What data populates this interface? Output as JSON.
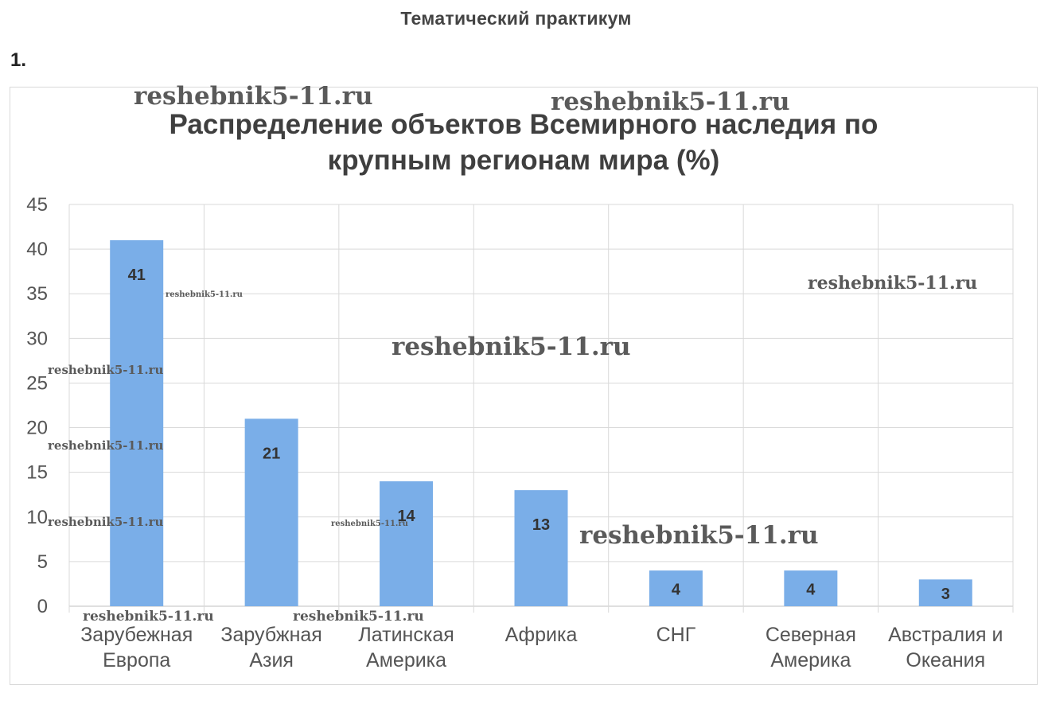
{
  "page": {
    "heading": "Тематический практикум",
    "task_number": "1."
  },
  "watermark_text": "reshebnik5-11.ru",
  "colors": {
    "bar": "#7aaee8",
    "grid": "#d9d9d9",
    "axis": "#bfbfbf"
  },
  "chart_data": {
    "type": "bar",
    "title": "Распределение объектов Всемирного наследия по крупным регионам мира (%)",
    "title_lines": [
      "Распределение объектов Всемирного наследия по",
      "крупным регионам мира (%)"
    ],
    "categories": [
      [
        "Зарубежная",
        "Европа"
      ],
      [
        "Зарубжная",
        "Азия"
      ],
      [
        "Латинская",
        "Америка"
      ],
      [
        "Африка"
      ],
      [
        "СНГ"
      ],
      [
        "Северная",
        "Америка"
      ],
      [
        "Австралия и",
        "Океания"
      ]
    ],
    "values": [
      41,
      21,
      14,
      13,
      4,
      4,
      3
    ],
    "data_labels": [
      "41",
      "21",
      "14",
      "13",
      "4",
      "4",
      "3"
    ],
    "ylim": [
      0,
      45
    ],
    "yticks": [
      0,
      5,
      10,
      15,
      20,
      25,
      30,
      35,
      40,
      45
    ],
    "xlabel": "",
    "ylabel": "",
    "grid": true,
    "legend": "none"
  }
}
